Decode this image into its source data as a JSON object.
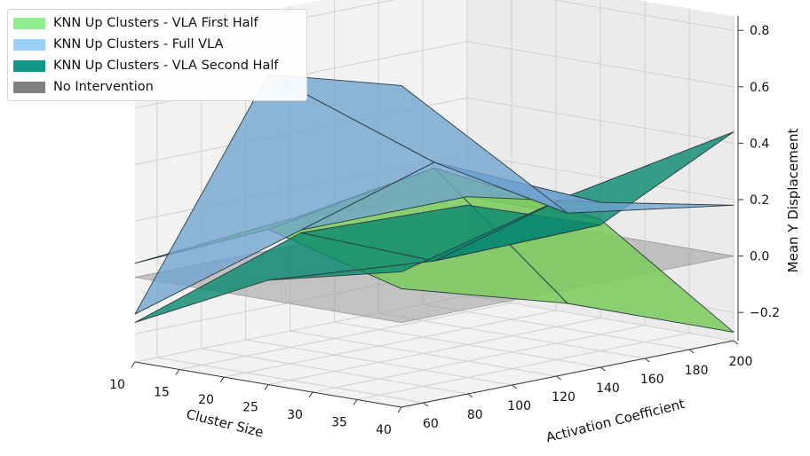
{
  "chart_data": {
    "type": "surface3d",
    "x_axis": {
      "label": "Cluster Size",
      "ticks": [
        10,
        15,
        20,
        25,
        30,
        35,
        40
      ],
      "range": [
        10,
        40
      ]
    },
    "y_axis": {
      "label": "Activation Coefficient",
      "ticks": [
        60,
        80,
        100,
        120,
        140,
        160,
        180,
        200
      ],
      "range": [
        50,
        200
      ]
    },
    "z_axis": {
      "label": "Mean Y Displacement",
      "ticks": [
        "0.8",
        "0.6",
        "0.4",
        "0.2",
        "0.0",
        "−0.2"
      ],
      "tick_values": [
        0.8,
        0.6,
        0.4,
        0.2,
        0.0,
        -0.2
      ],
      "range": [
        -0.3,
        0.85
      ]
    },
    "grid": true,
    "legend_position": "top-left",
    "series": [
      {
        "name": "KNN Up Clusters - VLA First Half",
        "color": "#90ee90",
        "cluster_sizes": [
          10,
          25,
          40
        ],
        "activation_coefficients": [
          50,
          125,
          200
        ],
        "z": [
          [
            0.05,
            0.1,
            0.05
          ],
          [
            0.25,
            0.35,
            0.05
          ],
          [
            0.12,
            -0.05,
            -0.27
          ]
        ]
      },
      {
        "name": "KNN Up Clusters - Full VLA",
        "color": "#87cefa",
        "cluster_sizes": [
          10,
          25,
          40
        ],
        "activation_coefficients": [
          50,
          125,
          200
        ],
        "z": [
          [
            -0.13,
            0.05,
            0.05
          ],
          [
            0.8,
            0.37,
            0.11
          ],
          [
            0.84,
            0.27,
            0.18
          ]
        ]
      },
      {
        "name": "KNN Up Clusters - VLA Second Half",
        "color": "#008b7a",
        "cluster_sizes": [
          10,
          25,
          40
        ],
        "activation_coefficients": [
          50,
          125,
          200
        ],
        "z": [
          [
            -0.16,
            0.04,
            0.02
          ],
          [
            0.07,
            0.02,
            0.03
          ],
          [
            0.18,
            0.33,
            0.44
          ]
        ]
      },
      {
        "name": "No Intervention",
        "color": "#808080",
        "cluster_sizes": [
          10,
          40
        ],
        "activation_coefficients": [
          50,
          200
        ],
        "z": [
          [
            0.0,
            0.0
          ],
          [
            0.0,
            0.0
          ]
        ]
      }
    ]
  }
}
